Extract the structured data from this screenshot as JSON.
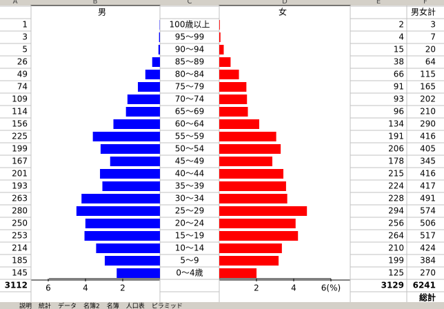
{
  "columns": [
    "A",
    "B",
    "C",
    "D",
    "E",
    "F"
  ],
  "header": {
    "male": "男",
    "female": "女",
    "total": "男女計"
  },
  "rows": [
    {
      "age": "100歳以上",
      "male": 1,
      "female": 2,
      "total": 3
    },
    {
      "age": "95〜99",
      "male": 3,
      "female": 4,
      "total": 7
    },
    {
      "age": "90〜94",
      "male": 5,
      "female": 15,
      "total": 20
    },
    {
      "age": "85〜89",
      "male": 26,
      "female": 38,
      "total": 64
    },
    {
      "age": "80〜84",
      "male": 49,
      "female": 66,
      "total": 115
    },
    {
      "age": "75〜79",
      "male": 74,
      "female": 91,
      "total": 165
    },
    {
      "age": "70〜74",
      "male": 109,
      "female": 93,
      "total": 202
    },
    {
      "age": "65〜69",
      "male": 114,
      "female": 96,
      "total": 210
    },
    {
      "age": "60〜64",
      "male": 156,
      "female": 134,
      "total": 290
    },
    {
      "age": "55〜59",
      "male": 225,
      "female": 191,
      "total": 416
    },
    {
      "age": "50〜54",
      "male": 199,
      "female": 206,
      "total": 405
    },
    {
      "age": "45〜49",
      "male": 167,
      "female": 178,
      "total": 345
    },
    {
      "age": "40〜44",
      "male": 201,
      "female": 215,
      "total": 416
    },
    {
      "age": "35〜39",
      "male": 193,
      "female": 224,
      "total": 417
    },
    {
      "age": "30〜34",
      "male": 263,
      "female": 228,
      "total": 491
    },
    {
      "age": "25〜29",
      "male": 280,
      "female": 294,
      "total": 574
    },
    {
      "age": "20〜24",
      "male": 250,
      "female": 256,
      "total": 506
    },
    {
      "age": "15〜19",
      "male": 253,
      "female": 264,
      "total": 517
    },
    {
      "age": "10〜14",
      "male": 214,
      "female": 210,
      "total": 424
    },
    {
      "age": "5〜9",
      "male": 185,
      "female": 199,
      "total": 384
    },
    {
      "age": "0〜4歳",
      "male": 145,
      "female": 125,
      "total": 270
    }
  ],
  "totals": {
    "male": 3112,
    "female": 3129,
    "total": 6241,
    "label": "総計"
  },
  "axis": {
    "male_ticks": [
      6,
      4,
      2
    ],
    "female_ticks": [
      2,
      4,
      {
        "value": 6,
        "label": "6(%)"
      }
    ],
    "male_color": "#0000ff",
    "female_color": "#ff0000"
  },
  "tabs": [
    "説明",
    "統計",
    "データ",
    "名簿2",
    "名簿",
    "人口表",
    "ピラミッド"
  ]
}
